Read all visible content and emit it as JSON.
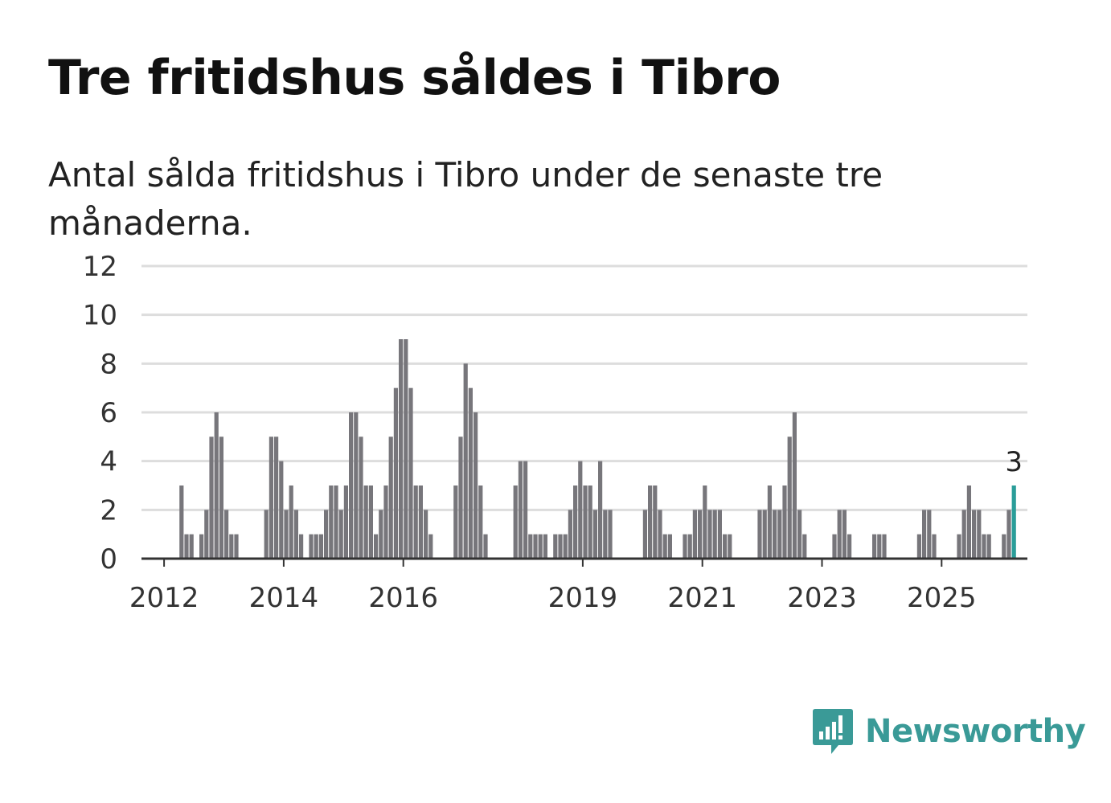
{
  "header": {
    "title": "Tre fritidshus såldes i Tibro",
    "subtitle": "Antal sålda fritidshus i Tibro under de senaste tre månaderna."
  },
  "brand": {
    "name": "Newsworthy",
    "color": "#3a9a97",
    "icon": "newsworthy-chart-bubble-icon"
  },
  "chart_data": {
    "type": "bar",
    "x_unit": "month",
    "start": "2011-07",
    "values": [
      0,
      0,
      0,
      0,
      0,
      0,
      0,
      0,
      0,
      3,
      1,
      1,
      0,
      1,
      2,
      5,
      6,
      5,
      2,
      1,
      1,
      0,
      0,
      0,
      0,
      0,
      2,
      5,
      5,
      4,
      2,
      3,
      2,
      1,
      0,
      1,
      1,
      1,
      2,
      3,
      3,
      2,
      3,
      6,
      6,
      5,
      3,
      3,
      1,
      2,
      3,
      5,
      7,
      9,
      9,
      7,
      3,
      3,
      2,
      1,
      0,
      0,
      0,
      0,
      3,
      5,
      8,
      7,
      6,
      3,
      1,
      0,
      0,
      0,
      0,
      0,
      3,
      4,
      4,
      1,
      1,
      1,
      1,
      0,
      1,
      1,
      1,
      2,
      3,
      4,
      3,
      3,
      2,
      4,
      2,
      2,
      0,
      0,
      0,
      0,
      0,
      0,
      2,
      3,
      3,
      2,
      1,
      1,
      0,
      0,
      1,
      1,
      2,
      2,
      3,
      2,
      2,
      2,
      1,
      1,
      0,
      0,
      0,
      0,
      0,
      2,
      2,
      3,
      2,
      2,
      3,
      5,
      6,
      2,
      1,
      0,
      0,
      0,
      0,
      0,
      1,
      2,
      2,
      1,
      0,
      0,
      0,
      0,
      1,
      1,
      1,
      0,
      0,
      0,
      0,
      0,
      0,
      1,
      2,
      2,
      1,
      0,
      0,
      0,
      0,
      1,
      2,
      3,
      2,
      2,
      1,
      1,
      0,
      0,
      1,
      2,
      3
    ],
    "highlight_last": true,
    "highlight_label": "3",
    "x_ticks": [
      "2012",
      "2014",
      "2016",
      "2019",
      "2021",
      "2023",
      "2025"
    ],
    "y_ticks": [
      "0",
      "2",
      "4",
      "6",
      "8",
      "10",
      "12"
    ],
    "ylim": [
      0,
      12
    ],
    "grid": true,
    "colors": {
      "bar": "#77767b",
      "highlight": "#2a9d99",
      "grid": "#dddddd",
      "axis": "#333333"
    }
  }
}
